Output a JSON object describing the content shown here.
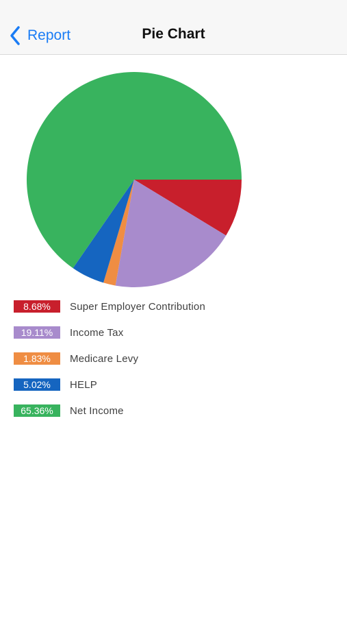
{
  "navbar": {
    "back_label": "Report",
    "title": "Pie Chart"
  },
  "colors": {
    "accent": "#1a7cf5",
    "super_employer_contribution": "#c81f2c",
    "income_tax": "#a88bcc",
    "medicare_levy": "#ef8d43",
    "help": "#1565c0",
    "net_income": "#38b35e"
  },
  "legend": [
    {
      "value_text": "8.68%",
      "label": "Super Employer Contribution",
      "color": "#c81f2c"
    },
    {
      "value_text": "19.11%",
      "label": "Income Tax",
      "color": "#a88bcc"
    },
    {
      "value_text": "1.83%",
      "label": "Medicare Levy",
      "color": "#ef8d43"
    },
    {
      "value_text": "5.02%",
      "label": "HELP",
      "color": "#1565c0"
    },
    {
      "value_text": "65.36%",
      "label": "Net Income",
      "color": "#38b35e"
    }
  ],
  "chart_data": {
    "type": "pie",
    "start_angle_deg": 0,
    "direction": "clockwise",
    "slices": [
      {
        "label": "Super Employer Contribution",
        "value": 8.68,
        "color": "#c81f2c"
      },
      {
        "label": "Income Tax",
        "value": 19.11,
        "color": "#a88bcc"
      },
      {
        "label": "Medicare Levy",
        "value": 1.83,
        "color": "#ef8d43"
      },
      {
        "label": "HELP",
        "value": 5.02,
        "color": "#1565c0"
      },
      {
        "label": "Net Income",
        "value": 65.36,
        "color": "#38b35e"
      }
    ]
  }
}
